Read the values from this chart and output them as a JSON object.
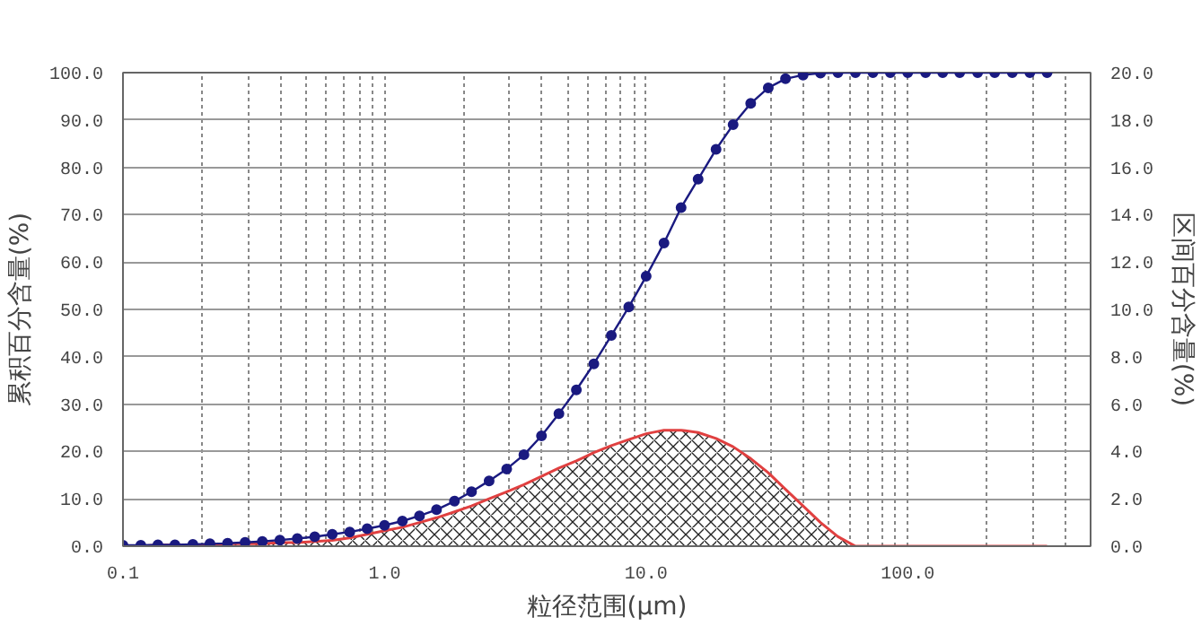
{
  "chart_data": {
    "type": "line",
    "xlabel": "粒径范围(μm)",
    "ylabel": "累积百分含量(%)",
    "y2label": "区间百分含量(%)",
    "x": [
      0.1,
      0.117,
      0.136,
      0.158,
      0.185,
      0.215,
      0.251,
      0.293,
      0.341,
      0.398,
      0.464,
      0.541,
      0.631,
      0.736,
      0.858,
      1.0,
      1.17,
      1.36,
      1.58,
      1.85,
      2.15,
      2.51,
      2.93,
      3.41,
      3.98,
      4.64,
      5.41,
      6.31,
      7.36,
      8.58,
      10.0,
      11.7,
      13.6,
      15.8,
      18.5,
      21.5,
      25.1,
      29.3,
      34.1,
      39.8,
      46.4,
      54.1,
      63.1,
      73.6,
      85.8,
      100,
      117,
      136,
      158,
      185,
      215,
      251,
      293,
      341
    ],
    "series": [
      {
        "color": "#1a1a80",
        "marker": "circle",
        "values": [
          0.2,
          0.2,
          0.3,
          0.3,
          0.4,
          0.5,
          0.6,
          0.8,
          1.0,
          1.3,
          1.6,
          2.0,
          2.5,
          3.0,
          3.7,
          4.4,
          5.3,
          6.4,
          7.7,
          9.5,
          11.5,
          13.8,
          16.3,
          19.3,
          23.3,
          28.0,
          33.0,
          38.5,
          44.5,
          50.5,
          57.0,
          64.0,
          71.5,
          77.5,
          83.8,
          89.0,
          93.5,
          96.8,
          98.7,
          99.5,
          99.9,
          100,
          100,
          100,
          100,
          100,
          100,
          100,
          100,
          100,
          100,
          100,
          100,
          100
        ]
      },
      {
        "type": "area",
        "axis": "y2",
        "color": "#e04040",
        "values": [
          0.0,
          0.0,
          0.05,
          0.05,
          0.05,
          0.05,
          0.1,
          0.1,
          0.1,
          0.15,
          0.15,
          0.2,
          0.25,
          0.35,
          0.5,
          0.65,
          0.8,
          1.0,
          1.2,
          1.45,
          1.7,
          2.0,
          2.3,
          2.6,
          2.95,
          3.3,
          3.6,
          3.95,
          4.25,
          4.5,
          4.75,
          4.9,
          4.9,
          4.8,
          4.55,
          4.2,
          3.7,
          3.1,
          2.4,
          1.7,
          1.0,
          0.4,
          0.0,
          0.0,
          0.0,
          0.0,
          0.0,
          0.0,
          0.0,
          0.0,
          0.0,
          0.0,
          0.0,
          0.0
        ]
      }
    ],
    "log": "x",
    "xlim": [
      0.1,
      500
    ],
    "xticks": [
      {
        "value": 0.1,
        "label": "0.1"
      },
      {
        "value": 1,
        "label": "1.0"
      },
      {
        "value": 10,
        "label": "10.0"
      },
      {
        "value": 100,
        "label": "100.0"
      }
    ],
    "ylim": [
      0,
      100
    ],
    "yticks": [
      {
        "value": 0,
        "label": "0.0"
      },
      {
        "value": 10,
        "label": "10.0"
      },
      {
        "value": 20,
        "label": "20.0"
      },
      {
        "value": 30,
        "label": "30.0"
      },
      {
        "value": 40,
        "label": "40.0"
      },
      {
        "value": 50,
        "label": "50.0"
      },
      {
        "value": 60,
        "label": "60.0"
      },
      {
        "value": 70,
        "label": "70.0"
      },
      {
        "value": 80,
        "label": "80.0"
      },
      {
        "value": 90,
        "label": "90.0"
      },
      {
        "value": 100,
        "label": "100.0"
      }
    ],
    "y2lim": [
      0,
      20
    ],
    "y2ticks": [
      {
        "value": 0,
        "label": "0.0"
      },
      {
        "value": 2,
        "label": "2.0"
      },
      {
        "value": 4,
        "label": "4.0"
      },
      {
        "value": 6,
        "label": "6.0"
      },
      {
        "value": 8,
        "label": "8.0"
      },
      {
        "value": 10,
        "label": "10.0"
      },
      {
        "value": 12,
        "label": "12.0"
      },
      {
        "value": 14,
        "label": "14.0"
      },
      {
        "value": 16,
        "label": "16.0"
      },
      {
        "value": 18,
        "label": "18.0"
      },
      {
        "value": 20,
        "label": "20.0"
      }
    ],
    "grid": true
  }
}
